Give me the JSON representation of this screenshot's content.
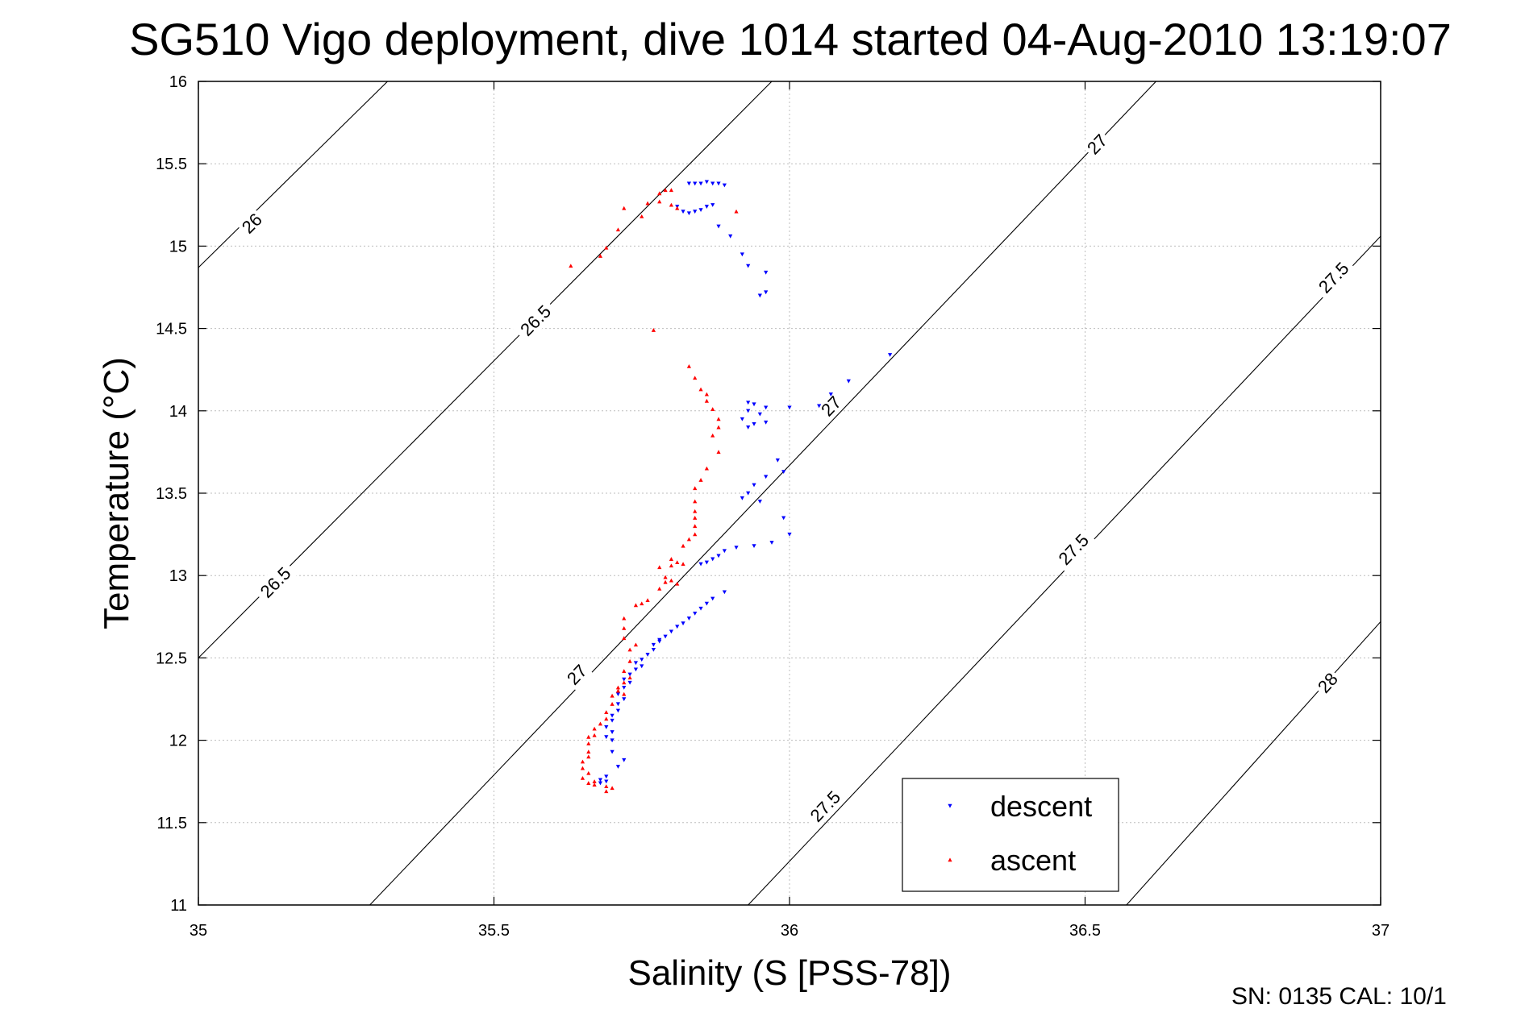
{
  "chart_data": {
    "type": "scatter",
    "title": "SG510 Vigo deployment, dive 1014 started 04-Aug-2010 13:19:07",
    "xlabel": "Salinity (S [PSS-78])",
    "ylabel": "Temperature (°C)",
    "xlim": [
      35,
      37
    ],
    "ylim": [
      11,
      16
    ],
    "x_ticks": [
      "35",
      "35.5",
      "36",
      "36.5",
      "37"
    ],
    "y_ticks": [
      "11",
      "11.5",
      "12",
      "12.5",
      "13",
      "13.5",
      "14",
      "14.5",
      "15",
      "15.5",
      "16"
    ],
    "grid": true,
    "legend_position": "bottom-right",
    "footer": "SN: 0135  CAL: 10/1",
    "density_contours": [
      {
        "level": 26,
        "points": [
          [
            35.0,
            14.87
          ],
          [
            35.32,
            16.0
          ]
        ],
        "labels": [
          {
            "text": "26",
            "at": [
              35.09,
              15.14
            ]
          }
        ]
      },
      {
        "level": 26.5,
        "points": [
          [
            35.0,
            12.5
          ],
          [
            35.97,
            16.0
          ]
        ],
        "labels": [
          {
            "text": "26.5",
            "at": [
              35.13,
              12.96
            ]
          },
          {
            "text": "26.5",
            "at": [
              35.57,
              14.55
            ]
          }
        ]
      },
      {
        "level": 27,
        "points": [
          [
            35.29,
            11.0
          ],
          [
            36.62,
            16.0
          ]
        ],
        "labels": [
          {
            "text": "27",
            "at": [
              35.64,
              12.4
            ]
          },
          {
            "text": "27",
            "at": [
              36.07,
              14.03
            ]
          },
          {
            "text": "27",
            "at": [
              36.52,
              15.62
            ]
          }
        ]
      },
      {
        "level": 27.5,
        "points": [
          [
            35.93,
            11.0
          ],
          [
            37.0,
            15.06
          ]
        ],
        "labels": [
          {
            "text": "27.5",
            "at": [
              36.06,
              11.6
            ]
          },
          {
            "text": "27.5",
            "at": [
              36.48,
              13.16
            ]
          },
          {
            "text": "27.5",
            "at": [
              36.92,
              14.81
            ]
          }
        ]
      },
      {
        "level": 28,
        "points": [
          [
            36.57,
            11.0
          ],
          [
            37.0,
            12.72
          ]
        ],
        "labels": [
          {
            "text": "28",
            "at": [
              36.91,
              12.35
            ]
          }
        ]
      }
    ],
    "series": [
      {
        "name": "descent",
        "color": "#0000ff",
        "marker": "triangle-down",
        "points": [
          [
            35.83,
            15.38
          ],
          [
            35.84,
            15.38
          ],
          [
            35.85,
            15.38
          ],
          [
            35.86,
            15.39
          ],
          [
            35.87,
            15.38
          ],
          [
            35.88,
            15.38
          ],
          [
            35.89,
            15.37
          ],
          [
            35.81,
            15.24
          ],
          [
            35.82,
            15.21
          ],
          [
            35.83,
            15.2
          ],
          [
            35.84,
            15.21
          ],
          [
            35.85,
            15.22
          ],
          [
            35.86,
            15.24
          ],
          [
            35.87,
            15.25
          ],
          [
            35.88,
            15.12
          ],
          [
            35.9,
            15.06
          ],
          [
            35.92,
            14.95
          ],
          [
            35.93,
            14.88
          ],
          [
            35.96,
            14.84
          ],
          [
            35.96,
            14.72
          ],
          [
            35.95,
            14.7
          ],
          [
            36.17,
            14.34
          ],
          [
            36.1,
            14.18
          ],
          [
            36.07,
            14.1
          ],
          [
            36.05,
            14.03
          ],
          [
            36.0,
            14.02
          ],
          [
            35.96,
            14.02
          ],
          [
            35.93,
            14.05
          ],
          [
            35.94,
            14.04
          ],
          [
            35.93,
            14.0
          ],
          [
            35.95,
            13.98
          ],
          [
            35.92,
            13.95
          ],
          [
            35.96,
            13.93
          ],
          [
            35.94,
            13.92
          ],
          [
            35.93,
            13.9
          ],
          [
            35.98,
            13.7
          ],
          [
            35.99,
            13.63
          ],
          [
            35.96,
            13.6
          ],
          [
            35.94,
            13.55
          ],
          [
            35.93,
            13.5
          ],
          [
            35.92,
            13.47
          ],
          [
            35.95,
            13.45
          ],
          [
            35.99,
            13.35
          ],
          [
            36.0,
            13.25
          ],
          [
            35.97,
            13.2
          ],
          [
            35.94,
            13.18
          ],
          [
            35.91,
            13.17
          ],
          [
            35.89,
            13.15
          ],
          [
            35.88,
            13.12
          ],
          [
            35.87,
            13.1
          ],
          [
            35.86,
            13.08
          ],
          [
            35.85,
            13.07
          ],
          [
            35.89,
            12.9
          ],
          [
            35.87,
            12.86
          ],
          [
            35.86,
            12.83
          ],
          [
            35.85,
            12.8
          ],
          [
            35.84,
            12.77
          ],
          [
            35.83,
            12.74
          ],
          [
            35.82,
            12.71
          ],
          [
            35.81,
            12.69
          ],
          [
            35.8,
            12.66
          ],
          [
            35.79,
            12.63
          ],
          [
            35.78,
            12.61
          ],
          [
            35.78,
            12.6
          ],
          [
            35.77,
            12.58
          ],
          [
            35.77,
            12.55
          ],
          [
            35.76,
            12.52
          ],
          [
            35.75,
            12.49
          ],
          [
            35.74,
            12.47
          ],
          [
            35.75,
            12.45
          ],
          [
            35.74,
            12.43
          ],
          [
            35.73,
            12.4
          ],
          [
            35.72,
            12.37
          ],
          [
            35.73,
            12.35
          ],
          [
            35.72,
            12.32
          ],
          [
            35.71,
            12.28
          ],
          [
            35.72,
            12.25
          ],
          [
            35.71,
            12.22
          ],
          [
            35.71,
            12.18
          ],
          [
            35.7,
            12.15
          ],
          [
            35.7,
            12.12
          ],
          [
            35.69,
            12.08
          ],
          [
            35.7,
            12.05
          ],
          [
            35.69,
            12.02
          ],
          [
            35.7,
            12.0
          ],
          [
            35.7,
            11.93
          ],
          [
            35.72,
            11.88
          ],
          [
            35.71,
            11.84
          ],
          [
            35.69,
            11.78
          ],
          [
            35.68,
            11.76
          ],
          [
            35.69,
            11.75
          ],
          [
            35.68,
            11.74
          ]
        ]
      },
      {
        "name": "ascent",
        "color": "#ff0000",
        "marker": "triangle-up",
        "points": [
          [
            35.79,
            15.34
          ],
          [
            35.8,
            15.34
          ],
          [
            35.78,
            15.32
          ],
          [
            35.78,
            15.27
          ],
          [
            35.8,
            15.25
          ],
          [
            35.81,
            15.23
          ],
          [
            35.76,
            15.26
          ],
          [
            35.72,
            15.23
          ],
          [
            35.75,
            15.18
          ],
          [
            35.71,
            15.1
          ],
          [
            35.69,
            14.99
          ],
          [
            35.68,
            14.94
          ],
          [
            35.63,
            14.88
          ],
          [
            35.91,
            15.21
          ],
          [
            35.77,
            14.49
          ],
          [
            35.83,
            14.27
          ],
          [
            35.84,
            14.2
          ],
          [
            35.85,
            14.13
          ],
          [
            35.86,
            14.1
          ],
          [
            35.86,
            14.06
          ],
          [
            35.87,
            14.01
          ],
          [
            35.88,
            13.95
          ],
          [
            35.88,
            13.9
          ],
          [
            35.87,
            13.85
          ],
          [
            35.88,
            13.75
          ],
          [
            35.86,
            13.65
          ],
          [
            35.85,
            13.58
          ],
          [
            35.84,
            13.53
          ],
          [
            35.84,
            13.45
          ],
          [
            35.84,
            13.39
          ],
          [
            35.84,
            13.35
          ],
          [
            35.84,
            13.3
          ],
          [
            35.84,
            13.25
          ],
          [
            35.83,
            13.22
          ],
          [
            35.82,
            13.18
          ],
          [
            35.8,
            13.1
          ],
          [
            35.81,
            13.08
          ],
          [
            35.82,
            13.07
          ],
          [
            35.8,
            13.06
          ],
          [
            35.78,
            13.05
          ],
          [
            35.79,
            12.99
          ],
          [
            35.8,
            12.97
          ],
          [
            35.81,
            12.95
          ],
          [
            35.79,
            12.96
          ],
          [
            35.78,
            12.92
          ],
          [
            35.76,
            12.85
          ],
          [
            35.75,
            12.83
          ],
          [
            35.74,
            12.82
          ],
          [
            35.72,
            12.74
          ],
          [
            35.72,
            12.68
          ],
          [
            35.72,
            12.62
          ],
          [
            35.74,
            12.58
          ],
          [
            35.73,
            12.55
          ],
          [
            35.73,
            12.48
          ],
          [
            35.72,
            12.42
          ],
          [
            35.73,
            12.38
          ],
          [
            35.72,
            12.35
          ],
          [
            35.71,
            12.32
          ],
          [
            35.71,
            12.3
          ],
          [
            35.72,
            12.28
          ],
          [
            35.7,
            12.27
          ],
          [
            35.7,
            12.22
          ],
          [
            35.69,
            12.17
          ],
          [
            35.69,
            12.13
          ],
          [
            35.68,
            12.1
          ],
          [
            35.67,
            12.07
          ],
          [
            35.67,
            12.03
          ],
          [
            35.66,
            12.02
          ],
          [
            35.66,
            11.98
          ],
          [
            35.66,
            11.93
          ],
          [
            35.66,
            11.9
          ],
          [
            35.65,
            11.87
          ],
          [
            35.65,
            11.83
          ],
          [
            35.66,
            11.8
          ],
          [
            35.65,
            11.77
          ],
          [
            35.67,
            11.75
          ],
          [
            35.66,
            11.74
          ],
          [
            35.67,
            11.73
          ],
          [
            35.69,
            11.72
          ],
          [
            35.69,
            11.69
          ],
          [
            35.7,
            11.71
          ]
        ]
      }
    ]
  }
}
